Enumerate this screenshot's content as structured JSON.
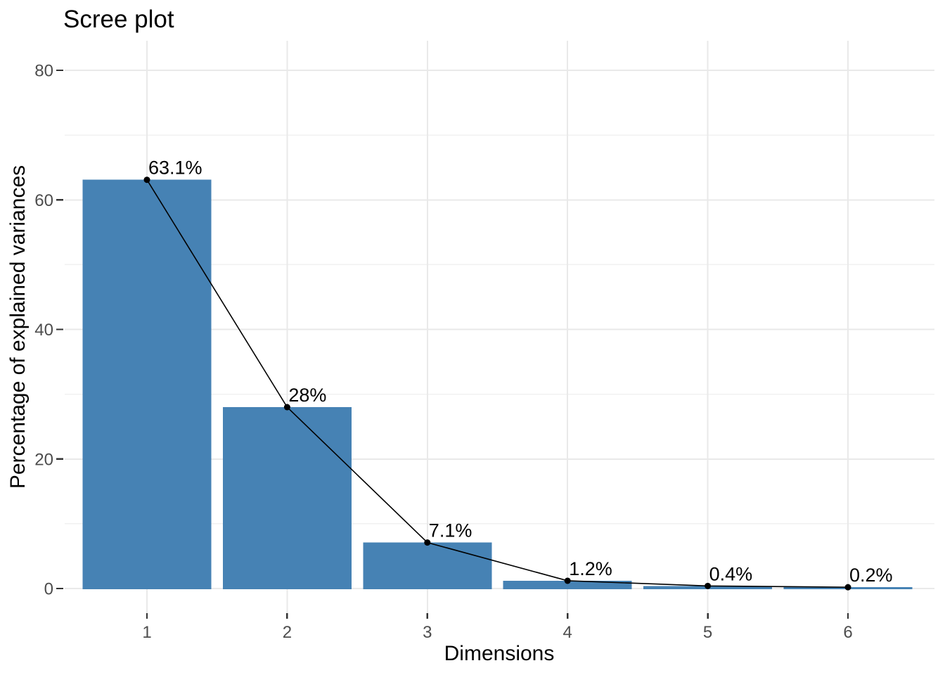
{
  "chart_data": {
    "type": "bar",
    "subtype": "scree-plot-with-line-overlay",
    "title": "Scree plot",
    "xlabel": "Dimensions",
    "ylabel": "Percentage of explained variances",
    "categories": [
      "1",
      "2",
      "3",
      "4",
      "5",
      "6"
    ],
    "values": [
      63.1,
      28,
      7.1,
      1.2,
      0.4,
      0.2
    ],
    "point_labels": [
      "63.1%",
      "28%",
      "7.1%",
      "1.2%",
      "0.4%",
      "0.2%"
    ],
    "ylim": [
      0,
      80
    ],
    "yticks": [
      0,
      20,
      40,
      60,
      80
    ],
    "ytick_labels": [
      "0",
      "20",
      "40",
      "60",
      "80"
    ],
    "yminor": [
      10,
      30,
      50,
      70
    ],
    "grid": "major-and-minor",
    "legend_position": "none",
    "colors": {
      "bar_fill": "#4682B4",
      "line": "#000000",
      "point": "#000000",
      "grid_major": "#e9e9e9",
      "grid_minor": "#f1f1f1",
      "tick_mark": "#333333",
      "tick_label": "#4d4d4d",
      "value_label": "#000000",
      "title": "#000000",
      "background": "#ffffff"
    }
  }
}
